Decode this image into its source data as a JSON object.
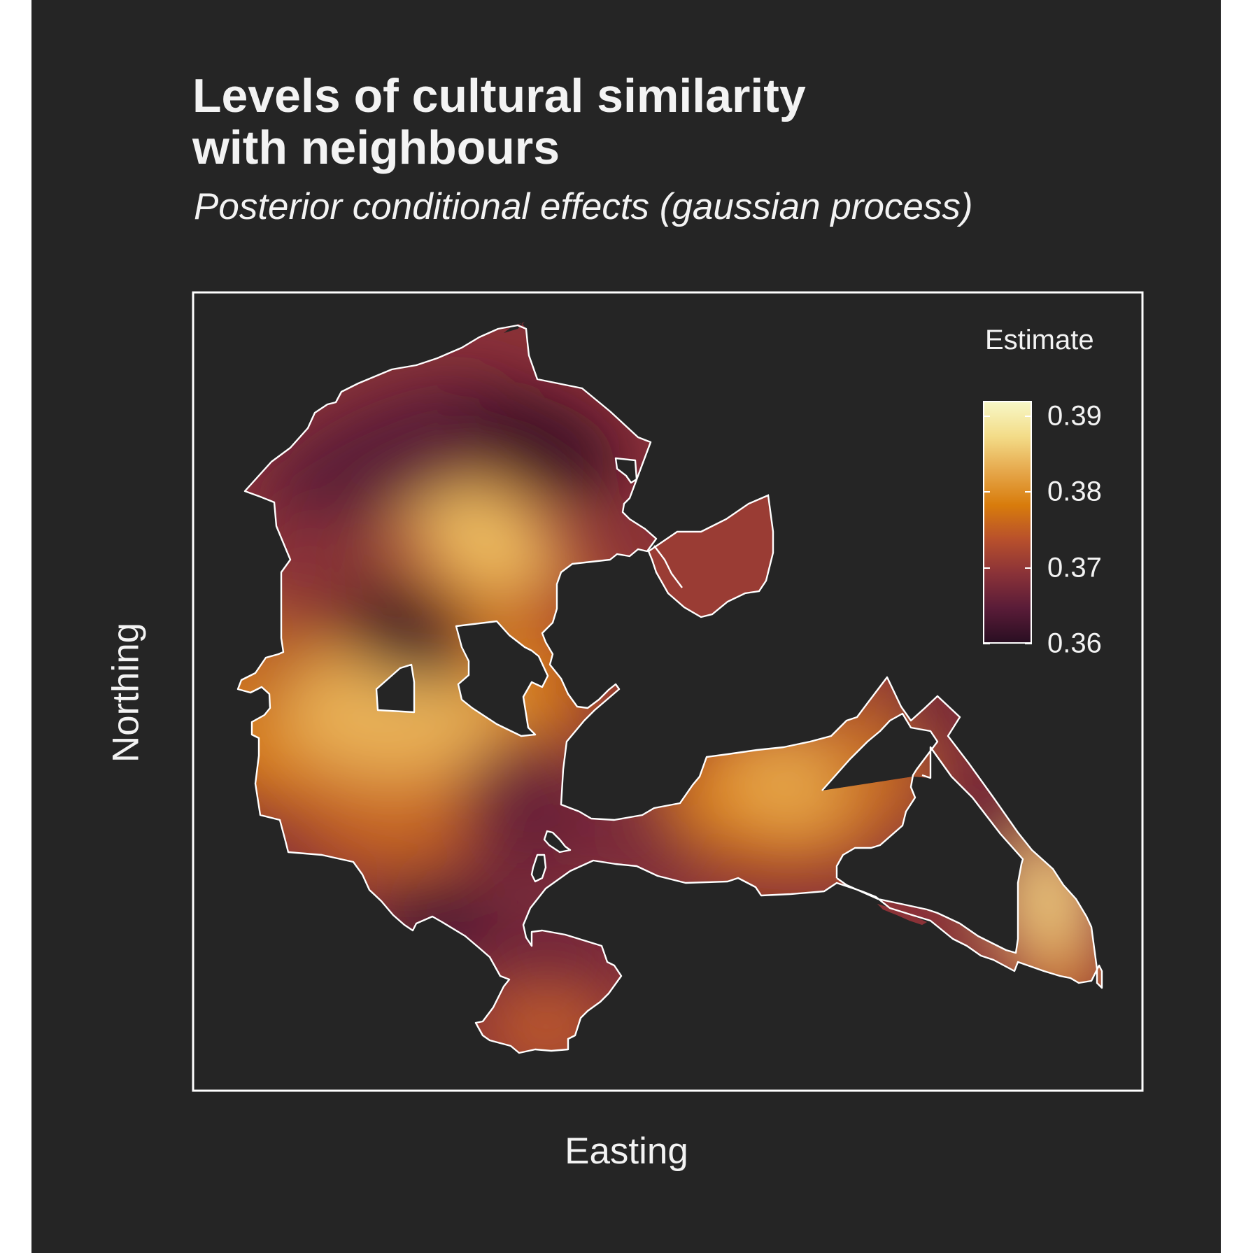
{
  "chart_data": {
    "type": "heatmap",
    "title": "Levels of cultural similarity\nwith neighbours",
    "subtitle": "Posterior conditional effects (gaussian process)",
    "xlabel": "Easting",
    "ylabel": "Northing",
    "legend": {
      "title": "Estimate",
      "placement": "top-right",
      "range": [
        0.36,
        0.392
      ],
      "ticks": [
        {
          "label": "0.39",
          "value": 0.39
        },
        {
          "label": "0.38",
          "value": 0.38
        },
        {
          "label": "0.37",
          "value": 0.37
        },
        {
          "label": "0.36",
          "value": 0.36
        }
      ],
      "colors": [
        "#2a0e22",
        "#5a1c38",
        "#8a3238",
        "#b8502c",
        "#d87c0c",
        "#e6a84c",
        "#f3dc88",
        "#f7f7c6"
      ]
    },
    "grid": false,
    "panel_border": true
  }
}
